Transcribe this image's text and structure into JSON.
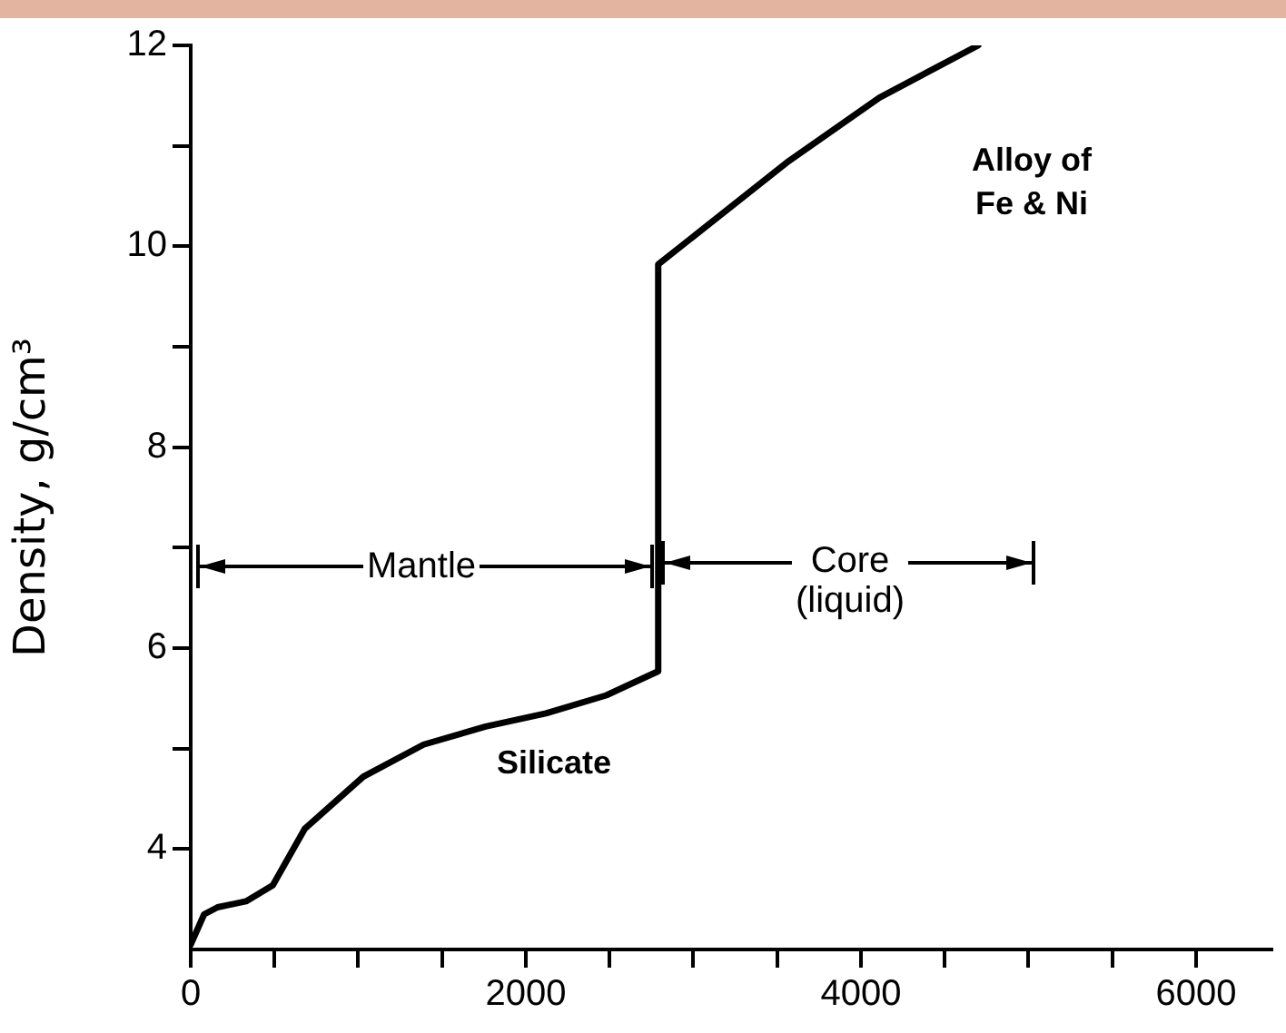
{
  "chart_data": {
    "type": "line",
    "ylabel": "Density, g/cm³",
    "series": [
      {
        "color": "#000000",
        "x": [
          0,
          80,
          160,
          330,
          490,
          680,
          1030,
          1390,
          1760,
          2120,
          2480,
          2790,
          2790,
          3570,
          4110,
          4700
        ],
        "values": [
          3.05,
          3.35,
          3.42,
          3.48,
          3.64,
          4.2,
          4.72,
          5.04,
          5.22,
          5.35,
          5.53,
          5.77,
          9.82,
          10.85,
          11.48,
          12
        ]
      }
    ],
    "xlim": [
      0,
      6450
    ],
    "ylim": [
      3,
      12
    ],
    "xticks": [
      0,
      {
        "value": 500,
        "label": null
      },
      {
        "value": 1000,
        "label": null
      },
      {
        "value": 1500,
        "label": null
      },
      2000,
      {
        "value": 2500,
        "label": null
      },
      {
        "value": 3000,
        "label": null
      },
      {
        "value": 3500,
        "label": null
      },
      4000,
      {
        "value": 4500,
        "label": null
      },
      {
        "value": 5000,
        "label": null
      },
      {
        "value": 5500,
        "label": null
      },
      6000
    ],
    "yticks": [
      4,
      {
        "value": 5,
        "label": null
      },
      6,
      {
        "value": 7,
        "label": null
      },
      8,
      {
        "value": 9,
        "label": null
      },
      10,
      {
        "value": 11,
        "label": null
      },
      12
    ],
    "annotations": [
      "Mantle",
      "Core\n(liquid)",
      "Silicate",
      "Alloy of\nFe & Ni"
    ],
    "grid": false,
    "legend": false,
    "marker": "none",
    "line_style": "solid"
  }
}
